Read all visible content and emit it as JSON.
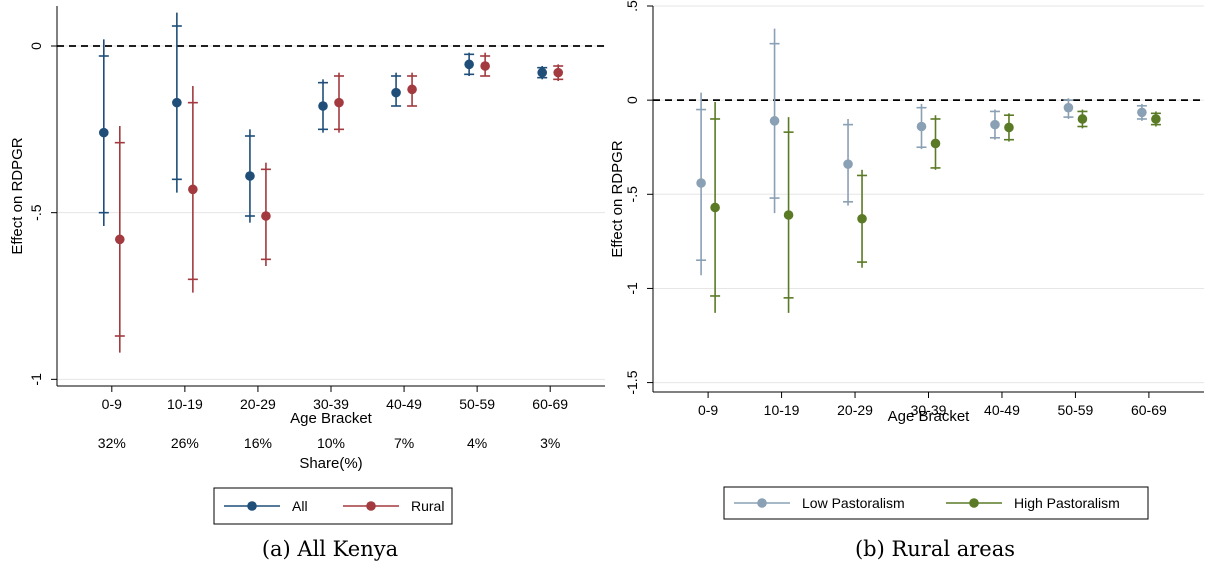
{
  "chart_data": [
    {
      "type": "scatter",
      "caption": "(a) All Kenya",
      "xlabel": "Age Bracket",
      "ylabel": "Effect on RDPGR",
      "categories": [
        "0-9",
        "10-19",
        "20-29",
        "30-39",
        "40-49",
        "50-59",
        "60-69"
      ],
      "shares_label": "Share(%)",
      "shares": [
        "32%",
        "26%",
        "16%",
        "10%",
        "7%",
        "4%",
        "3%"
      ],
      "ylim": [
        -1.02,
        0.12
      ],
      "yticks": [
        0,
        -0.5,
        -1
      ],
      "ytick_labels": [
        "0",
        "-.5",
        "-1"
      ],
      "reference_line": 0,
      "grid": true,
      "legend_position": "bottom-center",
      "series": [
        {
          "name": "All",
          "color": "#1f4e79",
          "points": [
            -0.26,
            -0.17,
            -0.39,
            -0.18,
            -0.14,
            -0.055,
            -0.08
          ],
          "ci90": [
            [
              -0.5,
              -0.03
            ],
            [
              -0.4,
              0.06
            ],
            [
              -0.51,
              -0.27
            ],
            [
              -0.25,
              -0.11
            ],
            [
              -0.18,
              -0.09
            ],
            [
              -0.085,
              -0.025
            ],
            [
              -0.095,
              -0.065
            ]
          ],
          "ci95": [
            [
              -0.54,
              0.02
            ],
            [
              -0.44,
              0.1
            ],
            [
              -0.53,
              -0.25
            ],
            [
              -0.26,
              -0.1
            ],
            [
              -0.18,
              -0.08
            ],
            [
              -0.09,
              -0.02
            ],
            [
              -0.1,
              -0.06
            ]
          ]
        },
        {
          "name": "Rural",
          "color": "#a23a3f",
          "points": [
            -0.58,
            -0.43,
            -0.51,
            -0.17,
            -0.13,
            -0.06,
            -0.08
          ],
          "ci90": [
            [
              -0.87,
              -0.29
            ],
            [
              -0.7,
              -0.17
            ],
            [
              -0.64,
              -0.37
            ],
            [
              -0.25,
              -0.09
            ],
            [
              -0.18,
              -0.09
            ],
            [
              -0.09,
              -0.03
            ],
            [
              -0.1,
              -0.06
            ]
          ],
          "ci95": [
            [
              -0.92,
              -0.24
            ],
            [
              -0.74,
              -0.12
            ],
            [
              -0.66,
              -0.35
            ],
            [
              -0.26,
              -0.08
            ],
            [
              -0.18,
              -0.08
            ],
            [
              -0.09,
              -0.02
            ],
            [
              -0.105,
              -0.055
            ]
          ]
        }
      ]
    },
    {
      "type": "scatter",
      "caption": "(b) Rural areas",
      "xlabel": "Age Bracket",
      "ylabel": "Effect on RDPGR",
      "categories": [
        "0-9",
        "10-19",
        "20-29",
        "30-39",
        "40-49",
        "50-59",
        "60-69"
      ],
      "ylim": [
        -1.55,
        0.5
      ],
      "yticks": [
        0.5,
        0,
        -0.5,
        -1,
        -1.5
      ],
      "ytick_labels": [
        ".5",
        "0",
        "-.5",
        "-1",
        "-1.5"
      ],
      "reference_line": 0,
      "grid": true,
      "legend_position": "bottom-center",
      "series": [
        {
          "name": "Low Pastoralism",
          "color": "#8aa0b4",
          "points": [
            -0.44,
            -0.11,
            -0.34,
            -0.14,
            -0.13,
            -0.04,
            -0.065
          ],
          "ci90": [
            [
              -0.85,
              -0.05
            ],
            [
              -0.52,
              0.3
            ],
            [
              -0.54,
              -0.13
            ],
            [
              -0.25,
              -0.04
            ],
            [
              -0.2,
              -0.06
            ],
            [
              -0.09,
              0.0
            ],
            [
              -0.1,
              -0.03
            ]
          ],
          "ci95": [
            [
              -0.93,
              0.04
            ],
            [
              -0.6,
              0.38
            ],
            [
              -0.56,
              -0.1
            ],
            [
              -0.26,
              -0.02
            ],
            [
              -0.21,
              -0.05
            ],
            [
              -0.1,
              0.01
            ],
            [
              -0.11,
              -0.02
            ]
          ]
        },
        {
          "name": "High Pastoralism",
          "color": "#5a7a26",
          "points": [
            -0.57,
            -0.61,
            -0.63,
            -0.23,
            -0.145,
            -0.1,
            -0.1
          ],
          "ci90": [
            [
              -1.04,
              -0.1
            ],
            [
              -1.05,
              -0.17
            ],
            [
              -0.86,
              -0.4
            ],
            [
              -0.36,
              -0.1
            ],
            [
              -0.21,
              -0.08
            ],
            [
              -0.14,
              -0.06
            ],
            [
              -0.13,
              -0.07
            ]
          ],
          "ci95": [
            [
              -1.13,
              -0.01
            ],
            [
              -1.13,
              -0.09
            ],
            [
              -0.89,
              -0.37
            ],
            [
              -0.37,
              -0.08
            ],
            [
              -0.22,
              -0.07
            ],
            [
              -0.15,
              -0.05
            ],
            [
              -0.14,
              -0.06
            ]
          ]
        }
      ]
    }
  ]
}
